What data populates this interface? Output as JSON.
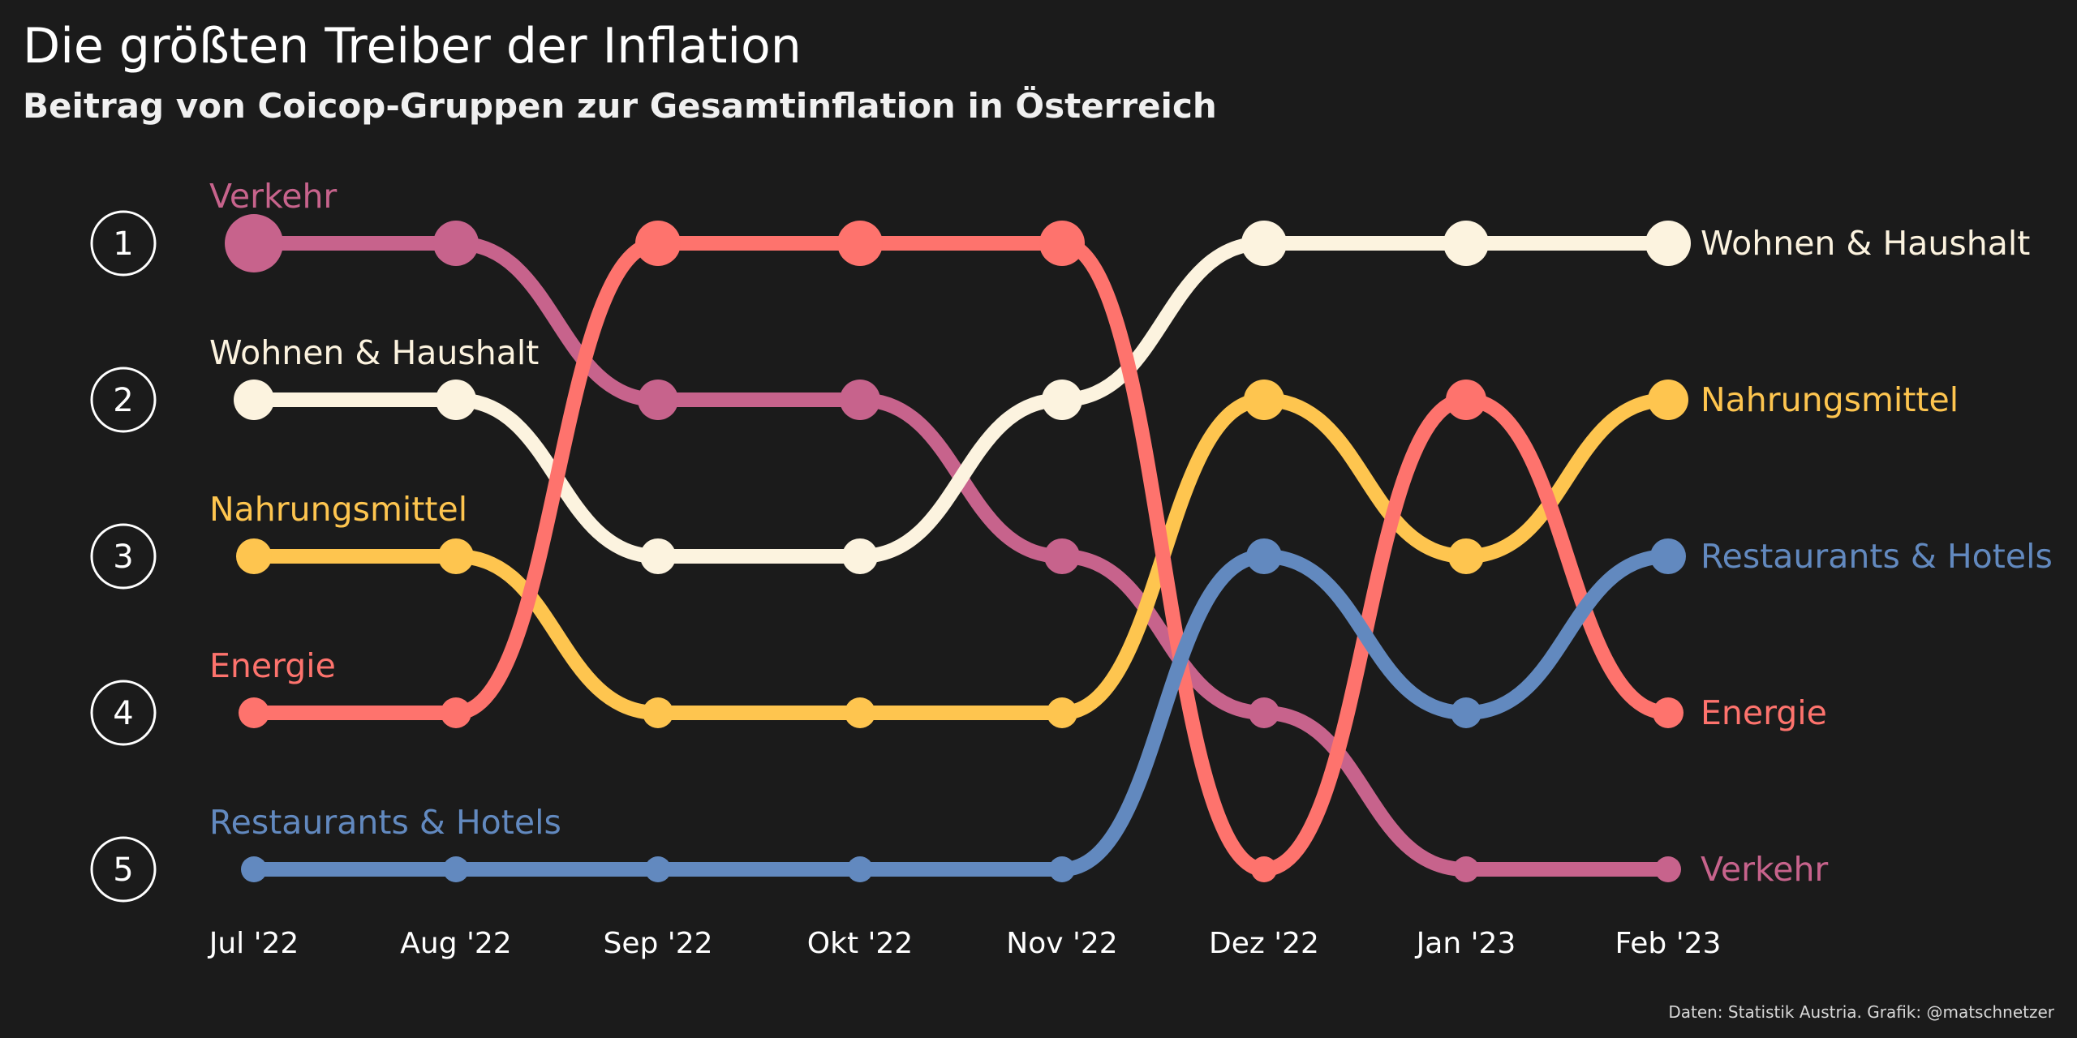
{
  "title": "Die größten Treiber der Inflation",
  "subtitle": "Beitrag von Coicop-Gruppen zur Gesamtinflation in Österreich",
  "source": "Daten: Statistik Austria. Grafik: @matschnetzer",
  "chart_data": {
    "type": "line",
    "categories": [
      "Jul '22",
      "Aug '22",
      "Sep '22",
      "Okt '22",
      "Nov '22",
      "Dez '22",
      "Jan '23",
      "Feb '23"
    ],
    "ranks": [
      "1",
      "2",
      "3",
      "4",
      "5"
    ],
    "series": [
      {
        "name": "Verkehr",
        "color": "#c7638c",
        "values": [
          1,
          1,
          2,
          2,
          3,
          4,
          5,
          5
        ]
      },
      {
        "name": "Wohnen & Haushalt",
        "color": "#fcf3df",
        "values": [
          2,
          2,
          3,
          3,
          2,
          1,
          1,
          1
        ]
      },
      {
        "name": "Nahrungsmittel",
        "color": "#fec54f",
        "values": [
          3,
          3,
          4,
          4,
          4,
          2,
          3,
          2
        ]
      },
      {
        "name": "Energie",
        "color": "#fe736d",
        "values": [
          4,
          4,
          1,
          1,
          1,
          5,
          2,
          4
        ]
      },
      {
        "name": "Restaurants & Hotels",
        "color": "#6289bf",
        "values": [
          5,
          5,
          5,
          5,
          5,
          3,
          4,
          3
        ]
      }
    ],
    "ylim": [
      1,
      5
    ],
    "y_reversed": true,
    "grid": false,
    "legend": "none"
  }
}
